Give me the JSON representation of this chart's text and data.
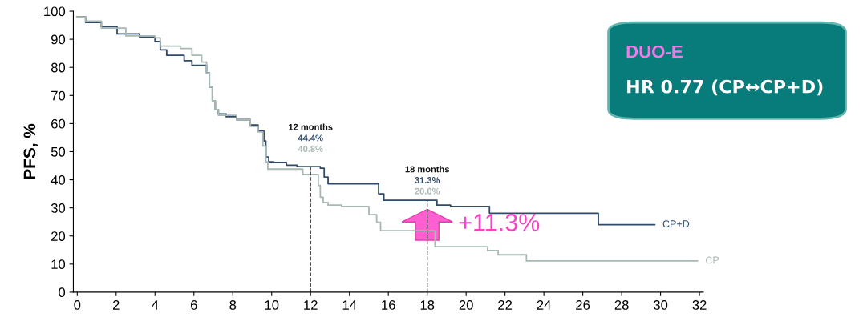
{
  "chart_data": {
    "type": "step",
    "ylabel": "PFS, %",
    "xlim": [
      -0.2,
      32.2
    ],
    "ylim": [
      0,
      100
    ],
    "xticks": [
      0,
      2,
      4,
      6,
      8,
      10,
      12,
      14,
      16,
      18,
      20,
      22,
      24,
      26,
      28,
      30,
      32
    ],
    "yticks": [
      0,
      10,
      20,
      30,
      40,
      50,
      60,
      70,
      80,
      90,
      100
    ],
    "grid": false,
    "legend": false,
    "marker": "none",
    "line_style": "solid",
    "series": [
      {
        "name": "CP+D",
        "color": "#2f4a6b",
        "x": [
          0,
          0.43,
          1.24,
          2.05,
          3.2,
          4.0,
          4.27,
          4.6,
          5.5,
          5.9,
          6.65,
          6.8,
          6.95,
          7.1,
          7.26,
          7.66,
          8.2,
          8.9,
          9.3,
          9.6,
          9.7,
          9.85,
          10.1,
          10.76,
          11.3,
          12.5,
          12.7,
          12.9,
          15.2,
          15.5,
          15.77,
          18.5,
          19.2,
          21.2,
          26.8,
          29.7
        ],
        "values": [
          98,
          96,
          94.5,
          91.9,
          90.8,
          89.2,
          86.2,
          84.3,
          82.4,
          80.7,
          78,
          73,
          68,
          65,
          63.4,
          62.4,
          61.4,
          59.5,
          57.4,
          53.8,
          48.1,
          46.4,
          46.2,
          45.2,
          44.7,
          44.1,
          41,
          38.6,
          38.6,
          35,
          32.7,
          31,
          30.5,
          28.1,
          24,
          24
        ]
      },
      {
        "name": "CP",
        "color": "#a8b8b2",
        "x": [
          0,
          0.43,
          1.24,
          2.5,
          4.0,
          4.27,
          5.3,
          5.9,
          6.4,
          6.65,
          6.8,
          6.95,
          7.1,
          7.26,
          8.2,
          8.9,
          9.3,
          9.55,
          9.7,
          9.8,
          11.6,
          12.4,
          12.5,
          12.65,
          12.9,
          13.6,
          15.0,
          15.4,
          15.6,
          18.4,
          21.1,
          21.65,
          23.1,
          31.9
        ],
        "values": [
          98,
          96.5,
          94,
          91.2,
          90.5,
          87.6,
          86.7,
          84.3,
          81.9,
          78,
          73,
          68,
          65,
          62.9,
          61.4,
          59,
          57,
          52,
          46.4,
          43.8,
          41.9,
          38,
          33.8,
          31.9,
          31,
          30.5,
          27.6,
          24.9,
          21.9,
          16.2,
          14.8,
          13.3,
          11.1,
          11.1
        ]
      }
    ],
    "ref_lines": [
      {
        "axis": "x",
        "value": 12,
        "color": "#333333",
        "line_style": "dashed"
      },
      {
        "axis": "x",
        "value": 18,
        "color": "#333333",
        "line_style": "dashed"
      }
    ],
    "annotations": [
      "12 months",
      "44.4%",
      "40.8%",
      "18 months",
      "31.3%",
      "20.0%",
      "+11.3%",
      "DUO-E",
      "HR 0.77 (CP↔CP+D)"
    ]
  }
}
